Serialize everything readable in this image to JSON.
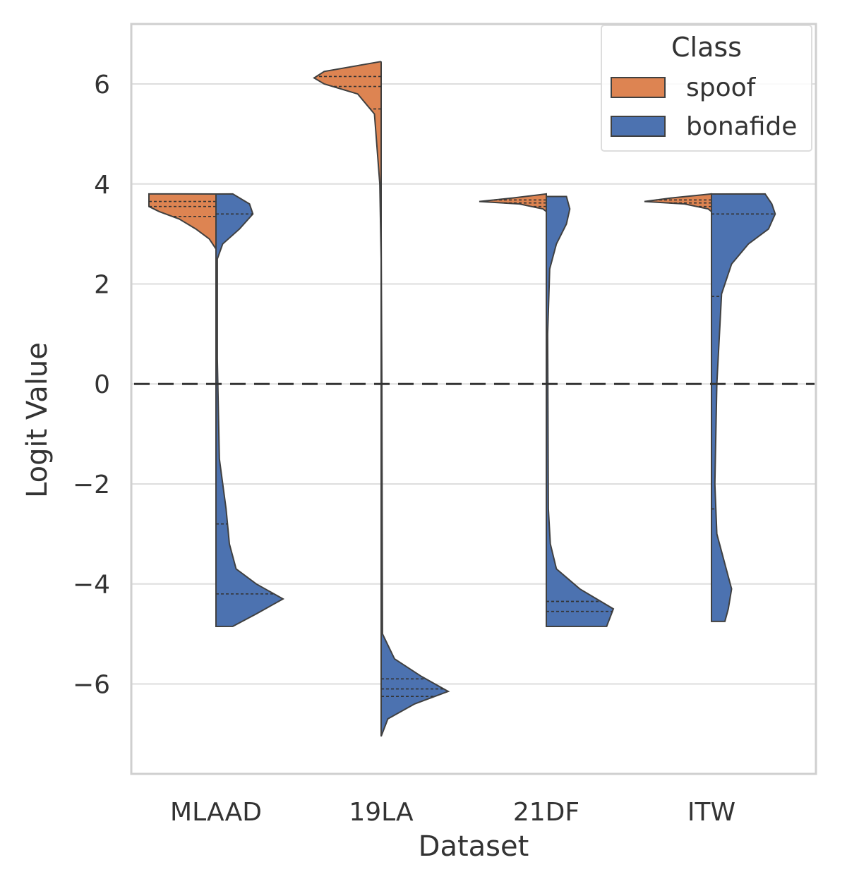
{
  "chart_data": {
    "type": "violin",
    "title": "",
    "xlabel": "Dataset",
    "ylabel": "Logit Value",
    "ylim": [
      -7.8,
      7.2
    ],
    "yticks": [
      6,
      4,
      2,
      0,
      -2,
      -4,
      -6
    ],
    "ytick_labels": [
      "6",
      "4",
      "2",
      "0",
      "−2",
      "−4",
      "−6"
    ],
    "categories": [
      "MLAAD",
      "19LA",
      "21DF",
      "ITW"
    ],
    "grid": true,
    "reference_line": {
      "y": 0,
      "style": "dashed"
    },
    "split": true,
    "legend": {
      "title": "Class",
      "placement": "top-right",
      "entries": [
        {
          "label": "spoof",
          "color": "#dd8452"
        },
        {
          "label": "bonafide",
          "color": "#4c72b0"
        }
      ]
    },
    "series": [
      {
        "name": "spoof",
        "side": "left",
        "color": "#dd8452",
        "violins": [
          {
            "category": "MLAAD",
            "min": 2.7,
            "max": 3.8,
            "quartiles": [
              3.35,
              3.55,
              3.65
            ],
            "profile": [
              [
                3.8,
                1.0
              ],
              [
                3.7,
                1.0
              ],
              [
                3.55,
                1.0
              ],
              [
                3.45,
                0.85
              ],
              [
                3.3,
                0.55
              ],
              [
                3.1,
                0.3
              ],
              [
                2.9,
                0.1
              ],
              [
                2.7,
                0.0
              ]
            ]
          },
          {
            "category": "19LA",
            "min": 2.5,
            "max": 6.45,
            "quartiles": [
              5.5,
              5.95,
              6.15
            ],
            "profile": [
              [
                6.45,
                0.0
              ],
              [
                6.25,
                0.85
              ],
              [
                6.12,
                1.0
              ],
              [
                6.0,
                0.85
              ],
              [
                5.8,
                0.35
              ],
              [
                5.4,
                0.1
              ],
              [
                4.0,
                0.02
              ],
              [
                2.5,
                0.0
              ]
            ]
          },
          {
            "category": "21DF",
            "min": 3.45,
            "max": 3.8,
            "quartiles": [
              3.55,
              3.62,
              3.68
            ],
            "profile": [
              [
                3.8,
                0.0
              ],
              [
                3.72,
                0.5
              ],
              [
                3.65,
                1.0
              ],
              [
                3.6,
                0.4
              ],
              [
                3.5,
                0.05
              ],
              [
                3.45,
                0.0
              ]
            ]
          },
          {
            "category": "ITW",
            "min": 3.45,
            "max": 3.8,
            "quartiles": [
              3.55,
              3.62,
              3.68
            ],
            "profile": [
              [
                3.8,
                0.0
              ],
              [
                3.72,
                0.6
              ],
              [
                3.65,
                1.0
              ],
              [
                3.6,
                0.4
              ],
              [
                3.5,
                0.05
              ],
              [
                3.45,
                0.0
              ]
            ]
          }
        ]
      },
      {
        "name": "bonafide",
        "side": "right",
        "color": "#4c72b0",
        "violins": [
          {
            "category": "MLAAD",
            "min": -4.85,
            "max": 3.8,
            "quartiles": [
              -4.2,
              -2.8,
              3.4
            ],
            "profile": [
              [
                3.8,
                0.25
              ],
              [
                3.6,
                0.5
              ],
              [
                3.4,
                0.55
              ],
              [
                3.1,
                0.35
              ],
              [
                2.8,
                0.1
              ],
              [
                2.5,
                0.02
              ],
              [
                0.5,
                0.02
              ],
              [
                -1.5,
                0.05
              ],
              [
                -2.5,
                0.15
              ],
              [
                -3.2,
                0.2
              ],
              [
                -3.7,
                0.3
              ],
              [
                -4.0,
                0.6
              ],
              [
                -4.3,
                1.0
              ],
              [
                -4.6,
                0.6
              ],
              [
                -4.85,
                0.25
              ]
            ]
          },
          {
            "category": "19LA",
            "min": -7.05,
            "max": 3.0,
            "quartiles": [
              -6.25,
              -6.1,
              -5.9
            ],
            "profile": [
              [
                3.0,
                0.0
              ],
              [
                0.0,
                0.01
              ],
              [
                -5.0,
                0.02
              ],
              [
                -5.5,
                0.2
              ],
              [
                -5.85,
                0.6
              ],
              [
                -6.15,
                1.0
              ],
              [
                -6.4,
                0.5
              ],
              [
                -6.7,
                0.1
              ],
              [
                -7.05,
                0.0
              ]
            ]
          },
          {
            "category": "21DF",
            "min": -4.85,
            "max": 3.75,
            "quartiles": [
              -4.55,
              -4.35,
              -4.35
            ],
            "profile": [
              [
                3.75,
                0.3
              ],
              [
                3.5,
                0.35
              ],
              [
                3.2,
                0.3
              ],
              [
                2.8,
                0.15
              ],
              [
                2.3,
                0.05
              ],
              [
                1.0,
                0.02
              ],
              [
                -2.5,
                0.03
              ],
              [
                -3.2,
                0.06
              ],
              [
                -3.7,
                0.15
              ],
              [
                -4.1,
                0.5
              ],
              [
                -4.5,
                1.0
              ],
              [
                -4.85,
                0.9
              ]
            ]
          },
          {
            "category": "ITW",
            "min": -4.75,
            "max": 3.8,
            "quartiles": [
              -2.5,
              1.75,
              3.4
            ],
            "profile": [
              [
                3.8,
                0.8
              ],
              [
                3.6,
                0.9
              ],
              [
                3.4,
                0.95
              ],
              [
                3.1,
                0.85
              ],
              [
                2.8,
                0.55
              ],
              [
                2.4,
                0.3
              ],
              [
                1.8,
                0.15
              ],
              [
                0.0,
                0.08
              ],
              [
                -2.0,
                0.05
              ],
              [
                -3.0,
                0.08
              ],
              [
                -3.6,
                0.2
              ],
              [
                -4.1,
                0.3
              ],
              [
                -4.5,
                0.25
              ],
              [
                -4.75,
                0.2
              ]
            ]
          }
        ]
      }
    ]
  }
}
